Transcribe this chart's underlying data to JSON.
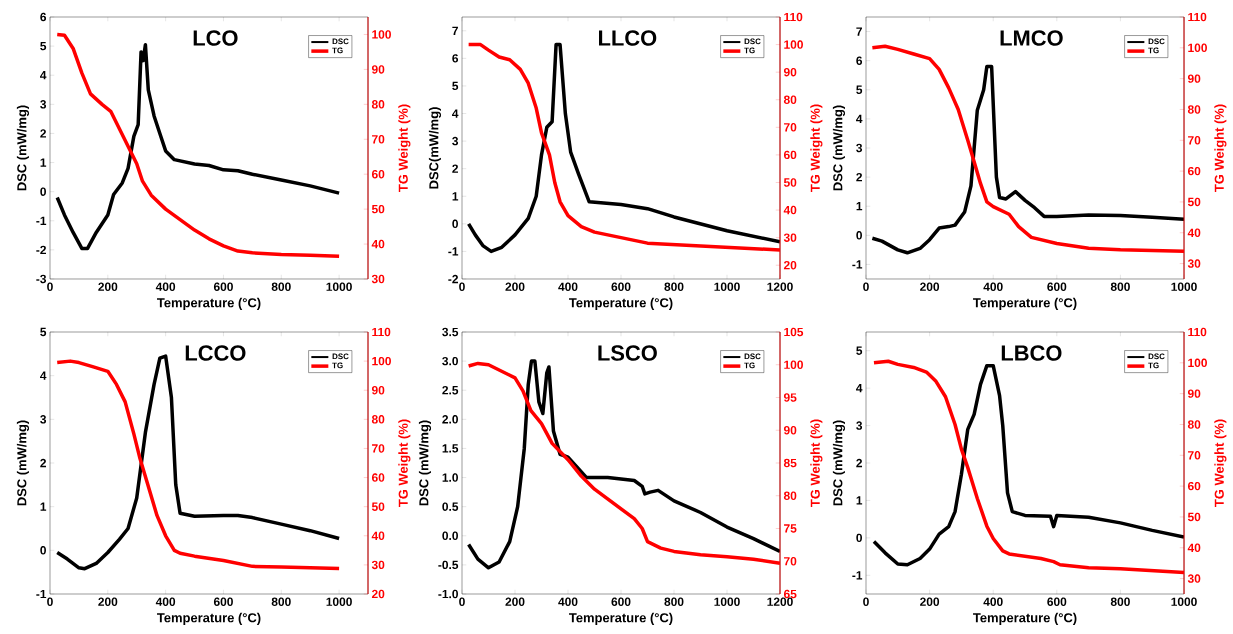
{
  "chart_data": [
    {
      "type": "line",
      "title": "LCO",
      "xlabel": "Temperature (°C)",
      "ylabel": "DSC (mW/mg)",
      "y2label": "TG Weight (%)",
      "legend": "top right",
      "xlim": [
        0,
        1100
      ],
      "xticks": [
        0,
        200,
        400,
        600,
        800,
        1000
      ],
      "ylim": [
        -3,
        6
      ],
      "yticks": [
        -3,
        -2,
        -1,
        0,
        1,
        2,
        3,
        4,
        5,
        6
      ],
      "y2lim": [
        30,
        105
      ],
      "y2ticks": [
        30,
        40,
        50,
        60,
        70,
        80,
        90,
        100
      ],
      "series": [
        {
          "name": "DSC",
          "color": "#000000",
          "x": [
            25,
            50,
            80,
            110,
            130,
            160,
            200,
            220,
            250,
            270,
            290,
            305,
            315,
            322,
            330,
            340,
            360,
            380,
            400,
            430,
            500,
            550,
            600,
            650,
            700,
            800,
            900,
            1000
          ],
          "values": [
            -0.2,
            -0.8,
            -1.4,
            -1.95,
            -1.95,
            -1.4,
            -0.8,
            -0.1,
            0.3,
            0.8,
            1.9,
            2.3,
            4.8,
            4.5,
            5.05,
            3.5,
            2.6,
            2.0,
            1.4,
            1.1,
            0.95,
            0.9,
            0.75,
            0.72,
            0.6,
            0.4,
            0.2,
            -0.05
          ]
        },
        {
          "name": "TG",
          "color": "#ff0000",
          "axis": "y2",
          "x": [
            25,
            50,
            80,
            110,
            140,
            180,
            210,
            240,
            270,
            300,
            320,
            350,
            400,
            450,
            500,
            550,
            600,
            650,
            700,
            800,
            900,
            1000
          ],
          "values": [
            100,
            99.8,
            96,
            89,
            83,
            80,
            78,
            73,
            68,
            63,
            58,
            54,
            50,
            47,
            44,
            41.5,
            39.5,
            38,
            37.5,
            37,
            36.8,
            36.5
          ]
        }
      ]
    },
    {
      "type": "line",
      "title": "LLCO",
      "xlabel": "Temperature (°C)",
      "ylabel": "DSC(mW/mg)",
      "y2label": "TG Weight (%)",
      "legend": "top right",
      "xlim": [
        0,
        1200
      ],
      "xticks": [
        0,
        200,
        400,
        600,
        800,
        1000,
        1200
      ],
      "ylim": [
        -2,
        7.5
      ],
      "yticks": [
        -2,
        -1,
        0,
        1,
        2,
        3,
        4,
        5,
        6,
        7
      ],
      "y2lim": [
        15,
        110
      ],
      "y2ticks": [
        20,
        30,
        40,
        50,
        60,
        70,
        80,
        90,
        100,
        110
      ],
      "series": [
        {
          "name": "DSC",
          "color": "#000000",
          "x": [
            25,
            50,
            80,
            110,
            150,
            200,
            250,
            280,
            300,
            320,
            340,
            355,
            370,
            390,
            410,
            440,
            460,
            480,
            600,
            700,
            800,
            900,
            1000,
            1100,
            1200
          ],
          "values": [
            0,
            -0.4,
            -0.8,
            -1.0,
            -0.85,
            -0.4,
            0.2,
            1.0,
            2.5,
            3.5,
            3.7,
            6.5,
            6.5,
            4.0,
            2.6,
            1.8,
            1.3,
            0.8,
            0.7,
            0.55,
            0.25,
            0.0,
            -0.25,
            -0.45,
            -0.65
          ]
        },
        {
          "name": "TG",
          "color": "#ff0000",
          "axis": "y2",
          "x": [
            25,
            70,
            100,
            140,
            180,
            220,
            250,
            280,
            300,
            330,
            350,
            370,
            400,
            450,
            500,
            600,
            700,
            800,
            1000,
            1200
          ],
          "values": [
            100,
            100,
            98,
            95.5,
            94.5,
            91,
            86,
            77,
            68,
            60,
            50,
            43,
            38,
            34,
            32,
            30,
            28,
            27.5,
            26.5,
            25.5
          ]
        }
      ]
    },
    {
      "type": "line",
      "title": "LMCO",
      "xlabel": "Temperature (°C)",
      "ylabel": "DSC (mW/mg)",
      "y2label": "TG Weight (%)",
      "legend": "top right",
      "xlim": [
        0,
        1000
      ],
      "xticks": [
        0,
        200,
        400,
        600,
        800,
        1000
      ],
      "ylim": [
        -1.5,
        7.5
      ],
      "yticks": [
        -1,
        0,
        1,
        2,
        3,
        4,
        5,
        6,
        7
      ],
      "y2lim": [
        25,
        110
      ],
      "y2ticks": [
        30,
        40,
        50,
        60,
        70,
        80,
        90,
        100,
        110
      ],
      "series": [
        {
          "name": "DSC",
          "color": "#000000",
          "x": [
            20,
            50,
            100,
            130,
            170,
            200,
            230,
            260,
            280,
            310,
            330,
            350,
            370,
            380,
            395,
            410,
            420,
            440,
            470,
            500,
            530,
            560,
            600,
            700,
            800,
            900,
            1000
          ],
          "values": [
            -0.1,
            -0.2,
            -0.5,
            -0.6,
            -0.45,
            -0.15,
            0.25,
            0.3,
            0.35,
            0.8,
            1.7,
            4.3,
            5.0,
            5.8,
            5.8,
            2.0,
            1.3,
            1.25,
            1.5,
            1.2,
            0.95,
            0.65,
            0.65,
            0.7,
            0.68,
            0.62,
            0.55
          ]
        },
        {
          "name": "TG",
          "color": "#ff0000",
          "axis": "y2",
          "x": [
            20,
            60,
            100,
            150,
            200,
            230,
            260,
            290,
            320,
            340,
            360,
            380,
            400,
            450,
            480,
            520,
            600,
            700,
            800,
            1000
          ],
          "values": [
            100,
            100.5,
            99.5,
            98,
            96.5,
            93,
            87,
            80,
            70,
            63,
            56,
            50,
            48.5,
            46,
            42,
            38.5,
            36.5,
            35,
            34.5,
            34
          ]
        }
      ]
    },
    {
      "type": "line",
      "title": "LCCO",
      "xlabel": "Temperature (°C)",
      "ylabel": "DSC (mW/mg)",
      "y2label": "TG Weight (%)",
      "legend": "top right",
      "xlim": [
        0,
        1100
      ],
      "xticks": [
        0,
        200,
        400,
        600,
        800,
        1000
      ],
      "ylim": [
        -1,
        5
      ],
      "yticks": [
        -1,
        0,
        1,
        2,
        3,
        4,
        5
      ],
      "y2lim": [
        20,
        110
      ],
      "y2ticks": [
        20,
        30,
        40,
        50,
        60,
        70,
        80,
        90,
        100,
        110
      ],
      "series": [
        {
          "name": "DSC",
          "color": "#000000",
          "x": [
            25,
            60,
            100,
            120,
            160,
            200,
            240,
            270,
            300,
            330,
            360,
            380,
            400,
            420,
            435,
            450,
            500,
            600,
            650,
            700,
            800,
            900,
            1000
          ],
          "values": [
            -0.05,
            -0.2,
            -0.4,
            -0.42,
            -0.3,
            -0.05,
            0.25,
            0.5,
            1.2,
            2.7,
            3.8,
            4.4,
            4.45,
            3.5,
            1.5,
            0.85,
            0.78,
            0.8,
            0.8,
            0.75,
            0.6,
            0.45,
            0.27
          ]
        },
        {
          "name": "TG",
          "color": "#ff0000",
          "axis": "y2",
          "x": [
            25,
            70,
            100,
            150,
            200,
            230,
            260,
            290,
            310,
            340,
            370,
            400,
            430,
            450,
            500,
            600,
            700,
            800,
            1000
          ],
          "values": [
            99.5,
            100,
            99.5,
            98,
            96.5,
            92,
            86,
            75,
            67,
            57,
            47,
            40,
            35,
            34,
            33,
            31.5,
            29.5,
            29.3,
            28.8
          ]
        }
      ]
    },
    {
      "type": "line",
      "title": "LSCO",
      "xlabel": "Temperature (°C)",
      "ylabel": "DSC (mW/mg)",
      "y2label": "TG Weight (%)",
      "legend": "top right",
      "xlim": [
        0,
        1200
      ],
      "xticks": [
        0,
        200,
        400,
        600,
        800,
        1000,
        1200
      ],
      "ylim": [
        -1,
        3.5
      ],
      "yticks": [
        {
          "value": -1,
          "label": "-1.0"
        },
        {
          "value": -0.5,
          "label": "-0.5"
        },
        {
          "value": 0,
          "label": "0.0"
        },
        {
          "value": 0.5,
          "label": "0.5"
        },
        {
          "value": 1,
          "label": "1.0"
        },
        {
          "value": 1.5,
          "label": "1.5"
        },
        {
          "value": 2,
          "label": "2.0"
        },
        {
          "value": 2.5,
          "label": "2.5"
        },
        {
          "value": 3,
          "label": "3.0"
        },
        {
          "value": 3.5,
          "label": "3.5"
        }
      ],
      "y2lim": [
        65,
        105
      ],
      "y2ticks": [
        65,
        70,
        75,
        80,
        85,
        90,
        95,
        100,
        105
      ],
      "series": [
        {
          "name": "DSC",
          "color": "#000000",
          "x": [
            25,
            60,
            100,
            140,
            180,
            210,
            235,
            250,
            262,
            275,
            290,
            305,
            320,
            328,
            345,
            370,
            400,
            430,
            470,
            500,
            550,
            650,
            680,
            690,
            710,
            740,
            800,
            900,
            1000,
            1100,
            1200
          ],
          "values": [
            -0.15,
            -0.4,
            -0.55,
            -0.45,
            -0.1,
            0.5,
            1.5,
            2.6,
            3.0,
            3.0,
            2.3,
            2.1,
            2.8,
            2.9,
            1.8,
            1.4,
            1.35,
            1.2,
            1.0,
            1.0,
            1.0,
            0.95,
            0.85,
            0.72,
            0.75,
            0.78,
            0.6,
            0.4,
            0.15,
            -0.05,
            -0.27
          ]
        },
        {
          "name": "TG",
          "color": "#ff0000",
          "axis": "y2",
          "x": [
            25,
            60,
            100,
            150,
            200,
            230,
            260,
            300,
            340,
            400,
            450,
            500,
            550,
            600,
            650,
            680,
            700,
            750,
            800,
            900,
            1000,
            1100,
            1200
          ],
          "values": [
            99.8,
            100.2,
            100,
            99,
            98,
            96,
            93,
            91,
            88,
            85.5,
            83,
            81,
            79.5,
            78,
            76.5,
            75,
            73,
            72,
            71.5,
            71,
            70.7,
            70.3,
            69.7
          ]
        }
      ]
    },
    {
      "type": "line",
      "title": "LBCO",
      "xlabel": "Temperature (°C)",
      "ylabel": "DSC (mW/mg)",
      "y2label": "TG Weight (%)",
      "legend": "top right",
      "xlim": [
        0,
        1000
      ],
      "xticks": [
        0,
        200,
        400,
        600,
        800,
        1000
      ],
      "ylim": [
        -1.5,
        5.5
      ],
      "yticks": [
        -1,
        0,
        1,
        2,
        3,
        4,
        5
      ],
      "y2lim": [
        25,
        110
      ],
      "y2ticks": [
        30,
        40,
        50,
        60,
        70,
        80,
        90,
        100,
        110
      ],
      "series": [
        {
          "name": "DSC",
          "color": "#000000",
          "x": [
            25,
            60,
            100,
            130,
            170,
            200,
            230,
            260,
            280,
            300,
            320,
            340,
            360,
            380,
            400,
            420,
            430,
            445,
            460,
            500,
            580,
            590,
            600,
            700,
            800,
            900,
            1000
          ],
          "values": [
            -0.1,
            -0.4,
            -0.7,
            -0.72,
            -0.55,
            -0.3,
            0.1,
            0.3,
            0.7,
            1.7,
            2.9,
            3.3,
            4.1,
            4.6,
            4.6,
            3.8,
            3.0,
            1.2,
            0.7,
            0.6,
            0.58,
            0.3,
            0.6,
            0.55,
            0.4,
            0.2,
            0.02
          ]
        },
        {
          "name": "TG",
          "color": "#ff0000",
          "axis": "y2",
          "x": [
            25,
            70,
            100,
            150,
            190,
            220,
            250,
            280,
            300,
            320,
            350,
            380,
            400,
            430,
            450,
            550,
            590,
            610,
            700,
            800,
            1000
          ],
          "values": [
            100,
            100.5,
            99.5,
            98.5,
            97,
            94,
            89,
            80,
            72,
            66,
            56,
            47,
            43,
            39,
            38,
            36.5,
            35.5,
            34.5,
            33.5,
            33.2,
            32
          ]
        }
      ]
    }
  ]
}
